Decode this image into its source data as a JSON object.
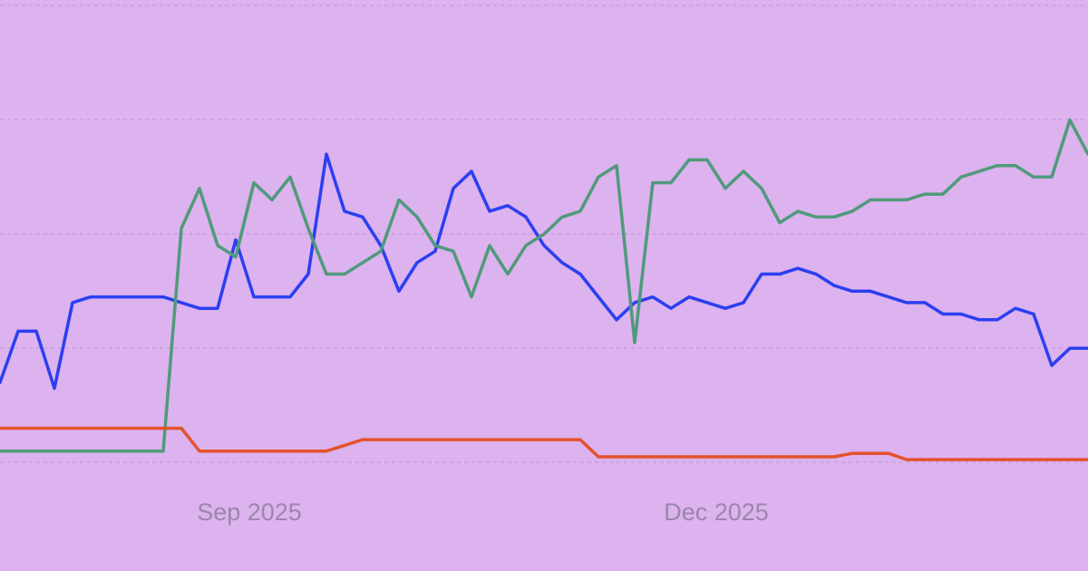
{
  "chart_data": {
    "type": "line",
    "x": [
      0,
      1,
      2,
      3,
      4,
      5,
      6,
      7,
      8,
      9,
      10,
      11,
      12,
      13,
      14,
      15,
      16,
      17,
      18,
      19,
      20,
      21,
      22,
      23,
      24,
      25,
      26,
      27,
      28,
      29,
      30,
      31,
      32,
      33,
      34,
      35,
      36,
      37,
      38,
      39,
      40,
      41,
      42,
      43,
      44,
      45,
      46,
      47,
      48,
      49,
      50,
      51,
      52,
      53,
      54,
      55,
      56,
      57,
      58,
      59,
      60
    ],
    "xlim": [
      0,
      60
    ],
    "xticks": [
      {
        "value": 13.75,
        "label": "Sep 2025"
      },
      {
        "value": 39.5,
        "label": "Dec 2025"
      }
    ],
    "ylim": [
      0,
      100
    ],
    "yticks": [
      20,
      40,
      60,
      80,
      100
    ],
    "grid": true,
    "series": [
      {
        "color": "#2b3ff0",
        "values": [
          33,
          42,
          42,
          32,
          47,
          48,
          48,
          48,
          48,
          48,
          47,
          46,
          46,
          58,
          48,
          48,
          48,
          52,
          73,
          63,
          62,
          57,
          49,
          54,
          56,
          67,
          70,
          63,
          64,
          62,
          57,
          54,
          52,
          48,
          44,
          47,
          48,
          46,
          48,
          47,
          46,
          47,
          52,
          52,
          53,
          52,
          50,
          49,
          49,
          48,
          47,
          47,
          45,
          45,
          44,
          44,
          46,
          45,
          36,
          39,
          39
        ]
      },
      {
        "color": "#4f9a7a",
        "values": [
          21,
          21,
          21,
          21,
          21,
          21,
          21,
          21,
          21,
          21,
          60,
          67,
          57,
          55,
          68,
          65,
          69,
          60,
          52,
          52,
          54,
          56,
          65,
          62,
          57,
          56,
          48,
          57,
          52,
          57,
          59,
          62,
          63,
          69,
          71,
          40,
          68,
          68,
          72,
          72,
          67,
          70,
          67,
          61,
          63,
          62,
          62,
          63,
          65,
          65,
          65,
          66,
          66,
          69,
          70,
          71,
          71,
          69,
          69,
          79,
          73
        ]
      },
      {
        "color": "#e4522c",
        "values": [
          25,
          25,
          25,
          25,
          25,
          25,
          25,
          25,
          25,
          25,
          25,
          21,
          21,
          21,
          21,
          21,
          21,
          21,
          21,
          22,
          23,
          23,
          23,
          23,
          23,
          23,
          23,
          23,
          23,
          23,
          23,
          23,
          23,
          20,
          20,
          20,
          20,
          20,
          20,
          20,
          20,
          20,
          20,
          20,
          20,
          20,
          20,
          20.6,
          20.6,
          20.6,
          19.5,
          19.5,
          19.5,
          19.5,
          19.5,
          19.5,
          19.5,
          19.5,
          19.5,
          19.5,
          19.5
        ]
      }
    ]
  }
}
